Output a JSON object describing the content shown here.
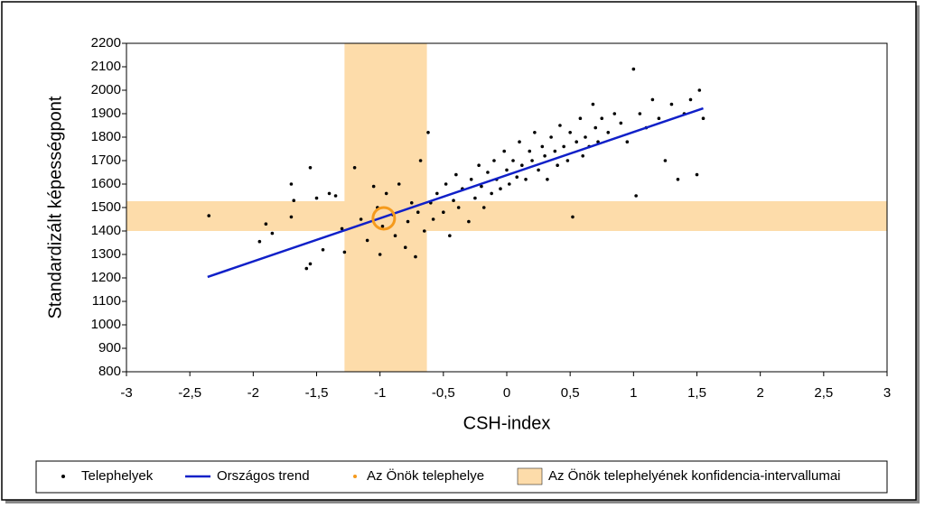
{
  "chart_data": {
    "type": "scatter",
    "x_label": "CSH-index",
    "y_label": "Standardizált képességpont",
    "xlim": [
      -3,
      3
    ],
    "ylim": [
      800,
      2200
    ],
    "xticks": [
      -3,
      {
        "value": -2.5,
        "label": "-2,5"
      },
      -2,
      {
        "value": -1.5,
        "label": "-1,5"
      },
      -1,
      {
        "value": -0.5,
        "label": "-0,5"
      },
      0,
      {
        "value": 0.5,
        "label": "0,5"
      },
      1,
      {
        "value": 1.5,
        "label": "1,5"
      },
      2,
      {
        "value": 2.5,
        "label": "2,5"
      },
      3
    ],
    "yticks": [
      800,
      900,
      1000,
      1100,
      1200,
      1300,
      1400,
      1500,
      1600,
      1700,
      1800,
      1900,
      2000,
      2100,
      2200
    ],
    "series": [
      {
        "name": "Telephelyek",
        "color": "#000000",
        "x": [
          -2.35,
          -1.95,
          -1.9,
          -1.85,
          -1.7,
          -1.7,
          -1.68,
          -1.55,
          -1.55,
          -1.58,
          -1.5,
          -1.45,
          -1.4,
          -1.35,
          -1.3,
          -1.28,
          -1.2,
          -1.15,
          -1.1,
          -1.05,
          -1.02,
          -1.0,
          -0.98,
          -0.95,
          -0.9,
          -0.88,
          -0.85,
          -0.8,
          -0.78,
          -0.75,
          -0.72,
          -0.7,
          -0.68,
          -0.65,
          -0.62,
          -0.6,
          -0.58,
          -0.55,
          -0.5,
          -0.48,
          -0.45,
          -0.42,
          -0.4,
          -0.38,
          -0.35,
          -0.3,
          -0.28,
          -0.25,
          -0.22,
          -0.2,
          -0.18,
          -0.15,
          -0.12,
          -0.1,
          -0.08,
          -0.05,
          -0.02,
          0,
          0.02,
          0.05,
          0.08,
          0.1,
          0.12,
          0.15,
          0.18,
          0.2,
          0.22,
          0.25,
          0.28,
          0.3,
          0.32,
          0.35,
          0.38,
          0.4,
          0.42,
          0.45,
          0.48,
          0.5,
          0.52,
          0.55,
          0.58,
          0.6,
          0.62,
          0.65,
          0.68,
          0.7,
          0.72,
          0.75,
          0.8,
          0.85,
          0.9,
          0.95,
          1.0,
          1.02,
          1.05,
          1.1,
          1.15,
          1.2,
          1.25,
          1.3,
          1.35,
          1.4,
          1.45,
          1.5,
          1.52,
          1.55
        ],
        "values": [
          1465,
          1355,
          1430,
          1390,
          1460,
          1600,
          1530,
          1670,
          1260,
          1240,
          1540,
          1320,
          1560,
          1550,
          1410,
          1310,
          1670,
          1450,
          1360,
          1590,
          1500,
          1300,
          1420,
          1560,
          1470,
          1380,
          1600,
          1330,
          1440,
          1520,
          1290,
          1480,
          1700,
          1400,
          1820,
          1520,
          1450,
          1560,
          1480,
          1600,
          1380,
          1530,
          1640,
          1500,
          1580,
          1440,
          1620,
          1540,
          1680,
          1590,
          1500,
          1650,
          1560,
          1700,
          1620,
          1580,
          1740,
          1660,
          1600,
          1700,
          1630,
          1780,
          1680,
          1620,
          1740,
          1700,
          1820,
          1660,
          1760,
          1720,
          1620,
          1800,
          1740,
          1680,
          1850,
          1760,
          1700,
          1820,
          1460,
          1780,
          1880,
          1720,
          1800,
          1760,
          1940,
          1840,
          1780,
          1880,
          1820,
          1900,
          1860,
          1780,
          2090,
          1550,
          1900,
          1840,
          1960,
          1880,
          1700,
          1940,
          1620,
          1900,
          1960,
          1640,
          2000,
          1880
        ]
      },
      {
        "name": "Országos trend",
        "color": "#1020c8",
        "x": [
          -2.36,
          1.55
        ],
        "values": [
          1204,
          1923
        ]
      },
      {
        "name": "Az Önök telephelye",
        "color": "#f59a1c",
        "x": [
          -0.97
        ],
        "values": [
          1454
        ]
      },
      {
        "name": "Az Önök telephelyének konfidencia-intervallumai",
        "color": "#fddcaa",
        "x_range": [
          -1.28,
          -0.63
        ],
        "y_range": [
          1400,
          1527
        ]
      }
    ]
  }
}
